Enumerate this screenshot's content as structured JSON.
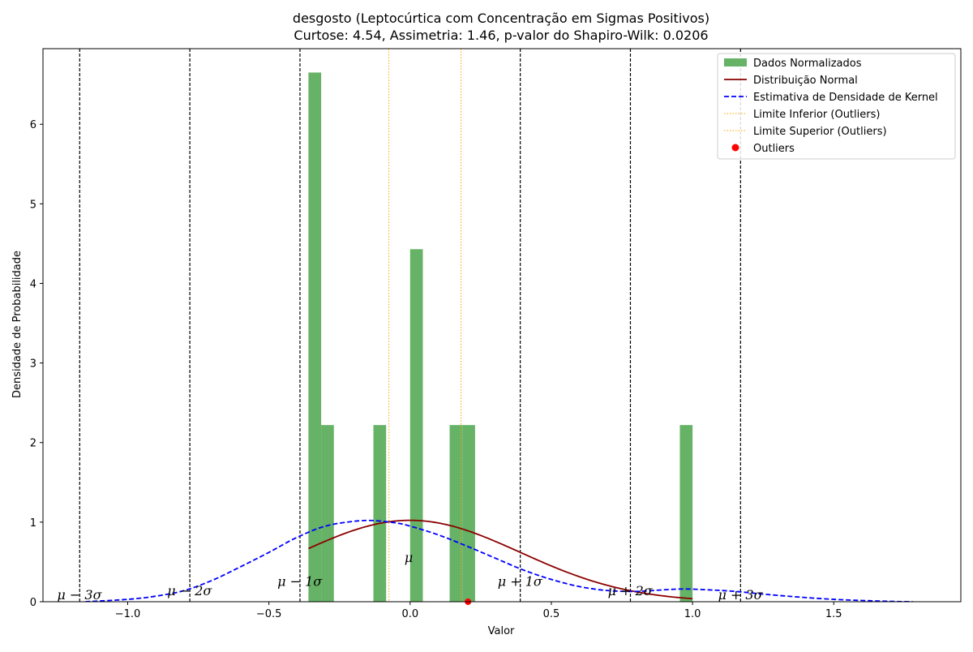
{
  "chart_data": {
    "type": "bar",
    "title": "desgosto (Leptocúrtica com Concentração em Sigmas Positivos)",
    "subtitle": "Curtose: 4.54, Assimetria: 1.46, p-valor do Shapiro-Wilk: 0.0206",
    "xlabel": "Valor",
    "ylabel": "Densidade de Probabilidade",
    "xlim": [
      -1.3,
      1.95
    ],
    "ylim": [
      0,
      6.95
    ],
    "xticks": [
      -1.0,
      -0.5,
      0.0,
      0.5,
      1.0,
      1.5
    ],
    "xtick_labels": [
      "−1.0",
      "−0.5",
      "0.0",
      "0.5",
      "1.0",
      "1.5"
    ],
    "yticks": [
      0,
      1,
      2,
      3,
      4,
      5,
      6
    ],
    "ytick_labels": [
      "0",
      "1",
      "2",
      "3",
      "4",
      "5",
      "6"
    ],
    "grid": false,
    "legend_position": "top-right",
    "legend": [
      {
        "label": "Dados Normalizados",
        "kind": "patch",
        "color": "#66b266"
      },
      {
        "label": "Distribuição Normal",
        "kind": "line",
        "color": "#8b0000"
      },
      {
        "label": "Estimativa de Densidade de Kernel",
        "kind": "dashed",
        "color": "#0000ff"
      },
      {
        "label": "Limite Inferior (Outliers)",
        "kind": "dotted",
        "color": "#ffa500"
      },
      {
        "label": "Limite Superior (Outliers)",
        "kind": "dotted",
        "color": "#ffa500"
      },
      {
        "label": "Outliers",
        "kind": "marker",
        "color": "#ff0000"
      }
    ],
    "histogram": {
      "color": "#66b266",
      "bars": [
        {
          "x0": -0.36,
          "x1": -0.315,
          "height": 6.65
        },
        {
          "x0": -0.315,
          "x1": -0.27,
          "height": 2.22
        },
        {
          "x0": -0.13,
          "x1": -0.085,
          "height": 2.22
        },
        {
          "x0": 0.0,
          "x1": 0.045,
          "height": 4.43
        },
        {
          "x0": 0.14,
          "x1": 0.185,
          "height": 2.22
        },
        {
          "x0": 0.185,
          "x1": 0.23,
          "height": 2.22
        },
        {
          "x0": 0.955,
          "x1": 1.0,
          "height": 2.22
        }
      ]
    },
    "normal_curve": {
      "mu": 0.0,
      "sigma": 0.39,
      "x_range": [
        -0.36,
        1.0
      ],
      "color": "#8b0000"
    },
    "kde_curve": {
      "color": "#0000ff",
      "x": [
        -1.15,
        -1.0,
        -0.9,
        -0.8,
        -0.7,
        -0.6,
        -0.5,
        -0.4,
        -0.3,
        -0.2,
        -0.13,
        -0.05,
        0.0,
        0.1,
        0.2,
        0.3,
        0.4,
        0.5,
        0.6,
        0.7,
        0.8,
        0.9,
        0.97,
        1.05,
        1.15,
        1.3,
        1.5,
        1.7,
        1.78
      ],
      "y": [
        0.0,
        0.03,
        0.07,
        0.14,
        0.27,
        0.44,
        0.62,
        0.81,
        0.95,
        1.01,
        1.02,
        0.99,
        0.95,
        0.84,
        0.7,
        0.55,
        0.4,
        0.28,
        0.19,
        0.14,
        0.13,
        0.15,
        0.16,
        0.15,
        0.13,
        0.08,
        0.03,
        0.005,
        0.0
      ]
    },
    "sigma_lines": {
      "values": [
        -1.17,
        -0.78,
        -0.39,
        0.39,
        0.78,
        1.17
      ],
      "color": "#000000"
    },
    "sigma_labels": [
      {
        "text": "μ − 3σ",
        "x": -1.25,
        "y": 0.03
      },
      {
        "text": "μ − 2σ",
        "x": -0.86,
        "y": 0.08
      },
      {
        "text": "μ − 1σ",
        "x": -0.47,
        "y": 0.2
      },
      {
        "text": "μ",
        "x": -0.02,
        "y": 0.5
      },
      {
        "text": "μ + 1σ",
        "x": 0.31,
        "y": 0.2
      },
      {
        "text": "μ + 2σ",
        "x": 0.7,
        "y": 0.08
      },
      {
        "text": "μ + 3σ",
        "x": 1.09,
        "y": 0.03
      }
    ],
    "outlier_bounds": {
      "lower": -0.075,
      "upper": 0.18,
      "color": "#ffa500"
    },
    "outliers": [
      {
        "x": 0.205,
        "y": 0.0
      }
    ]
  }
}
